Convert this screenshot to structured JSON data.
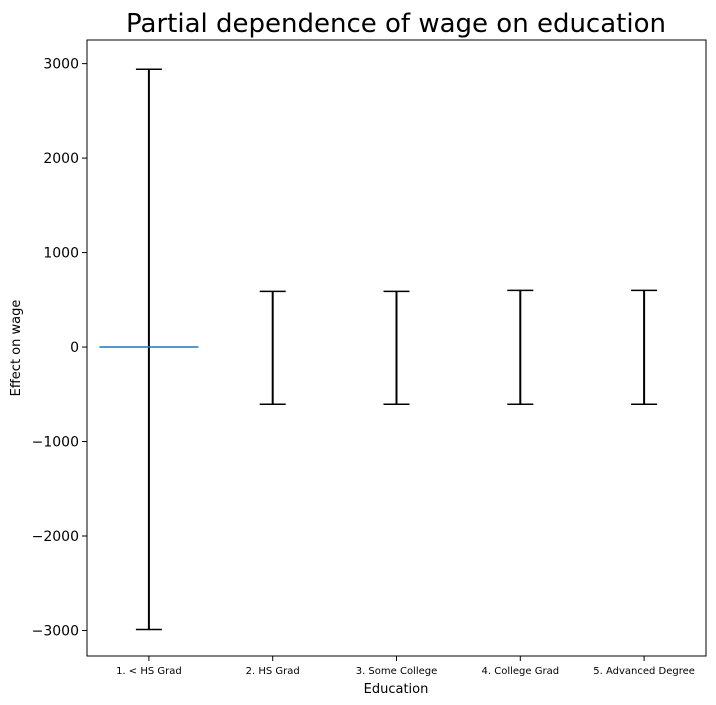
{
  "chart_data": {
    "type": "errorbar",
    "title": "Partial dependence of wage on education",
    "xlabel": "Education",
    "ylabel": "Effect on wage",
    "categories": [
      "1. < HS Grad",
      "2. HS Grad",
      "3. Some College",
      "4. College Grad",
      "5. Advanced Degree"
    ],
    "values": [
      0,
      0,
      0,
      0,
      0
    ],
    "lower": [
      -2990,
      -605,
      -605,
      -605,
      -605
    ],
    "upper": [
      2940,
      590,
      590,
      600,
      600
    ],
    "ylim": [
      -3270,
      3250
    ],
    "yticks": [
      -3000,
      -2000,
      -1000,
      0,
      1000,
      2000,
      3000
    ],
    "ytick_labels": [
      "−3000",
      "−2000",
      "−1000",
      "0",
      "1000",
      "2000",
      "3000"
    ],
    "grid": false,
    "colors": {
      "errorbar": "#000000",
      "reference_line": "#1f77b4"
    }
  }
}
